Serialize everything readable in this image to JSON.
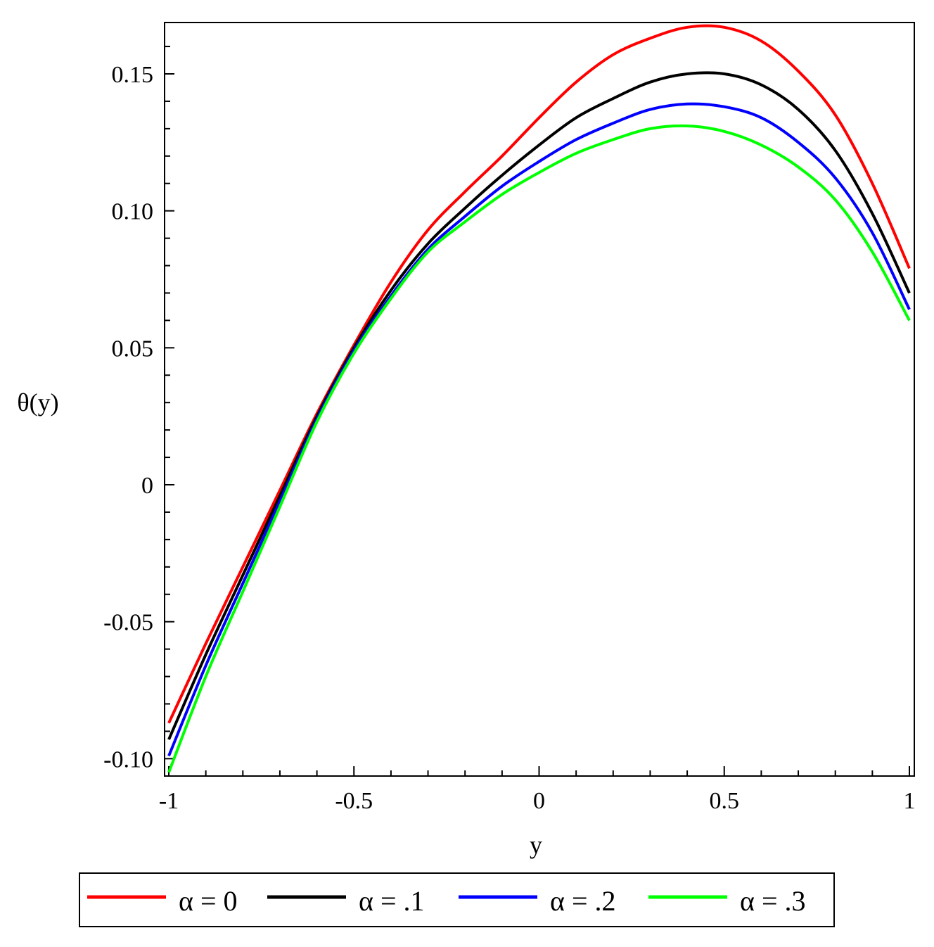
{
  "chart_data": {
    "type": "line",
    "xlabel": "y",
    "ylabel": "θ(y)",
    "xlim": [
      -1,
      1
    ],
    "ylim": [
      -0.105,
      0.168
    ],
    "x_ticks": [
      {
        "value": -1,
        "label": "-1"
      },
      {
        "value": -0.5,
        "label": "-0.5"
      },
      {
        "value": 0,
        "label": "0"
      },
      {
        "value": 0.5,
        "label": "0.5"
      },
      {
        "value": 1,
        "label": "1"
      }
    ],
    "y_ticks": [
      {
        "value": -0.1,
        "label": "-0.10"
      },
      {
        "value": -0.05,
        "label": "-0.05"
      },
      {
        "value": 0,
        "label": "0"
      },
      {
        "value": 0.05,
        "label": "0.05"
      },
      {
        "value": 0.1,
        "label": "0.10"
      },
      {
        "value": 0.15,
        "label": "0.15"
      }
    ],
    "grid": false,
    "legend_position": "bottom",
    "x": [
      -1,
      -0.9,
      -0.8,
      -0.7,
      -0.6,
      -0.5,
      -0.4,
      -0.3,
      -0.2,
      -0.1,
      0,
      0.1,
      0.2,
      0.3,
      0.4,
      0.5,
      0.6,
      0.7,
      0.8,
      0.9,
      1
    ],
    "series": [
      {
        "name": "α = 0",
        "color": "#ff0000",
        "values": [
          -0.087,
          -0.058,
          -0.03,
          -0.002,
          0.026,
          0.051,
          0.074,
          0.093,
          0.107,
          0.12,
          0.134,
          0.147,
          0.157,
          0.163,
          0.167,
          0.167,
          0.162,
          0.151,
          0.135,
          0.11,
          0.079
        ]
      },
      {
        "name": "α = .1",
        "color": "#000000",
        "values": [
          -0.093,
          -0.062,
          -0.033,
          -0.004,
          0.025,
          0.05,
          0.071,
          0.088,
          0.101,
          0.113,
          0.124,
          0.134,
          0.141,
          0.147,
          0.15,
          0.15,
          0.146,
          0.137,
          0.122,
          0.099,
          0.07
        ]
      },
      {
        "name": "α = .2",
        "color": "#0000ff",
        "values": [
          -0.099,
          -0.066,
          -0.036,
          -0.006,
          0.024,
          0.049,
          0.069,
          0.086,
          0.098,
          0.109,
          0.118,
          0.126,
          0.132,
          0.137,
          0.139,
          0.138,
          0.134,
          0.125,
          0.112,
          0.092,
          0.064
        ]
      },
      {
        "name": "α = .3",
        "color": "#00ff00",
        "values": [
          -0.105,
          -0.07,
          -0.039,
          -0.008,
          0.023,
          0.048,
          0.068,
          0.085,
          0.096,
          0.106,
          0.114,
          0.121,
          0.126,
          0.13,
          0.131,
          0.129,
          0.124,
          0.116,
          0.104,
          0.085,
          0.06
        ]
      }
    ]
  }
}
